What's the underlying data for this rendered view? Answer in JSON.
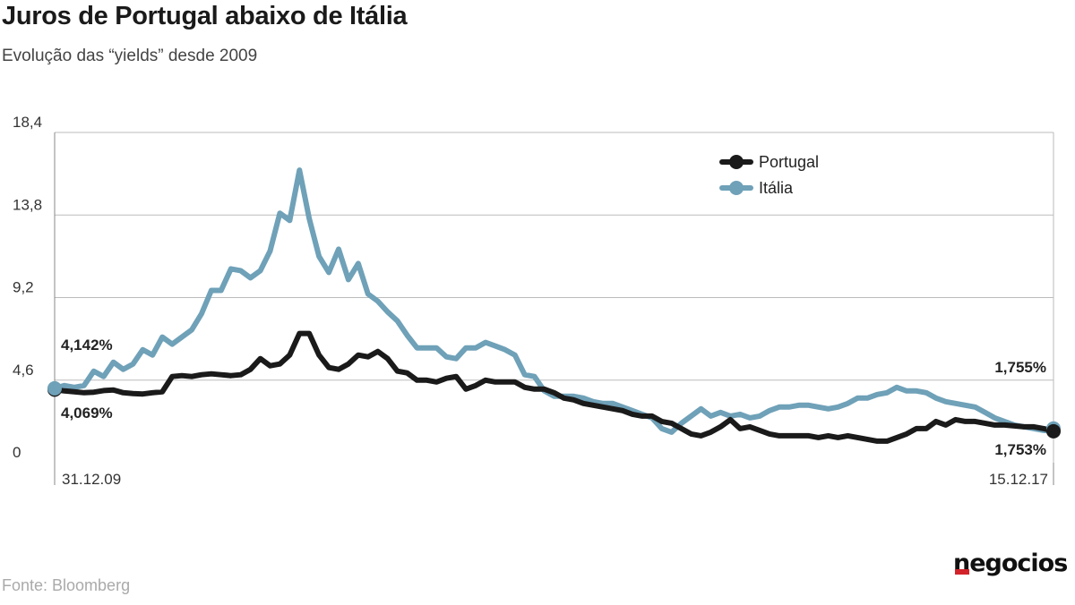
{
  "header": {
    "title": "Juros de Portugal abaixo de Itália",
    "subtitle": "Evolução das “yields” desde 2009"
  },
  "footer": {
    "source": "Fonte: Bloomberg",
    "logo_text": "negocios"
  },
  "chart_data": {
    "type": "line",
    "title": "Juros de Portugal abaixo de Itália",
    "subtitle": "Evolução das “yields” desde 2009",
    "xlabel": "",
    "ylabel": "",
    "ylim": [
      0,
      18.4
    ],
    "yticks": [
      0,
      4.6,
      9.2,
      13.8,
      18.4
    ],
    "ytick_labels": [
      "0",
      "4,6",
      "9,2",
      "13,8",
      "18,4"
    ],
    "xtick_labels": [
      "31.12.09",
      "15.12.17"
    ],
    "grid": "horizontal",
    "legend_position": "top-right",
    "colors": {
      "Portugal": "#1a1a1a",
      "Itália": "#6fa1b8",
      "grid": "#bbbbbb",
      "logo_accent": "#d2232a"
    },
    "series": [
      {
        "name": "Portugal",
        "values": [
          4.069,
          4.0,
          3.95,
          3.9,
          3.93,
          4.02,
          4.05,
          3.9,
          3.85,
          3.83,
          3.9,
          3.95,
          4.8,
          4.85,
          4.8,
          4.9,
          4.95,
          4.9,
          4.85,
          4.9,
          5.2,
          5.8,
          5.4,
          5.5,
          6.0,
          7.2,
          7.2,
          6.0,
          5.3,
          5.2,
          5.5,
          6.0,
          5.9,
          6.2,
          5.8,
          5.1,
          5.0,
          4.6,
          4.6,
          4.5,
          4.7,
          4.8,
          4.1,
          4.3,
          4.6,
          4.5,
          4.5,
          4.5,
          4.2,
          4.1,
          4.1,
          3.9,
          3.6,
          3.5,
          3.3,
          3.2,
          3.1,
          3.0,
          2.9,
          2.7,
          2.6,
          2.6,
          2.3,
          2.2,
          1.9,
          1.6,
          1.5,
          1.7,
          2.0,
          2.4,
          1.9,
          2.0,
          1.8,
          1.6,
          1.5,
          1.5,
          1.5,
          1.5,
          1.4,
          1.5,
          1.4,
          1.5,
          1.4,
          1.3,
          1.2,
          1.2,
          1.4,
          1.6,
          1.9,
          1.9,
          2.3,
          2.1,
          2.4,
          2.3,
          2.3,
          2.2,
          2.1,
          2.1,
          2.05,
          2.0,
          2.0,
          1.9,
          1.753
        ]
      },
      {
        "name": "Itália",
        "values": [
          4.142,
          4.3,
          4.2,
          4.3,
          5.1,
          4.8,
          5.6,
          5.2,
          5.5,
          6.3,
          6.0,
          7.0,
          6.6,
          7.0,
          7.4,
          8.3,
          9.6,
          9.6,
          10.8,
          10.7,
          10.3,
          10.7,
          11.8,
          13.9,
          13.5,
          16.3,
          13.6,
          11.5,
          10.6,
          11.9,
          10.2,
          11.1,
          9.4,
          9.0,
          8.4,
          7.9,
          7.1,
          6.4,
          6.4,
          6.4,
          5.9,
          5.8,
          6.4,
          6.4,
          6.7,
          6.5,
          6.3,
          6.0,
          4.9,
          4.8,
          4.0,
          3.7,
          3.7,
          3.7,
          3.6,
          3.4,
          3.3,
          3.3,
          3.1,
          2.9,
          2.7,
          2.5,
          1.9,
          1.7,
          2.2,
          2.6,
          3.0,
          2.6,
          2.8,
          2.6,
          2.7,
          2.5,
          2.6,
          2.9,
          3.1,
          3.1,
          3.2,
          3.2,
          3.1,
          3.0,
          3.1,
          3.3,
          3.6,
          3.6,
          3.8,
          3.9,
          4.2,
          4.0,
          4.0,
          3.9,
          3.6,
          3.4,
          3.3,
          3.2,
          3.1,
          2.8,
          2.5,
          2.3,
          2.1,
          2.0,
          1.9,
          1.8,
          1.755
        ]
      }
    ],
    "annotations": {
      "italy_start": "4,142%",
      "portugal_start": "4,069%",
      "italy_end": "1,755%",
      "portugal_end": "1,753%"
    }
  }
}
